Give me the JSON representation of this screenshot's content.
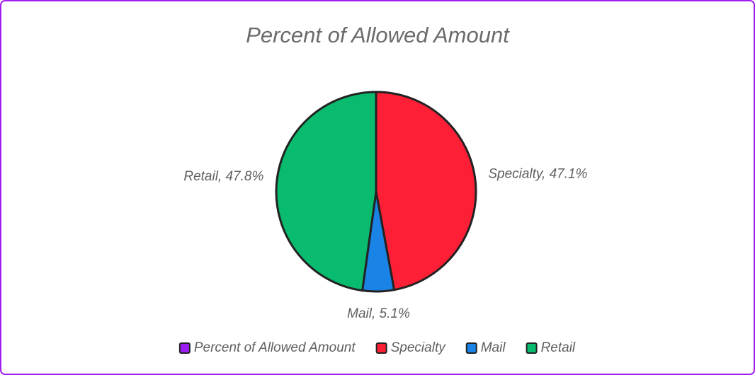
{
  "chart_data": {
    "type": "pie",
    "title": "Percent of Allowed Amount",
    "series_name": "Percent of Allowed Amount",
    "series_color": "#9b1ff0",
    "categories": [
      "Specialty",
      "Mail",
      "Retail"
    ],
    "values": [
      47.1,
      5.1,
      47.8
    ],
    "value_labels": [
      "Specialty, 47.1%",
      "Mail, 5.1%",
      "Retail, 47.8%"
    ],
    "colors": [
      "#fd1f36",
      "#1a83e6",
      "#08bb6f"
    ]
  }
}
